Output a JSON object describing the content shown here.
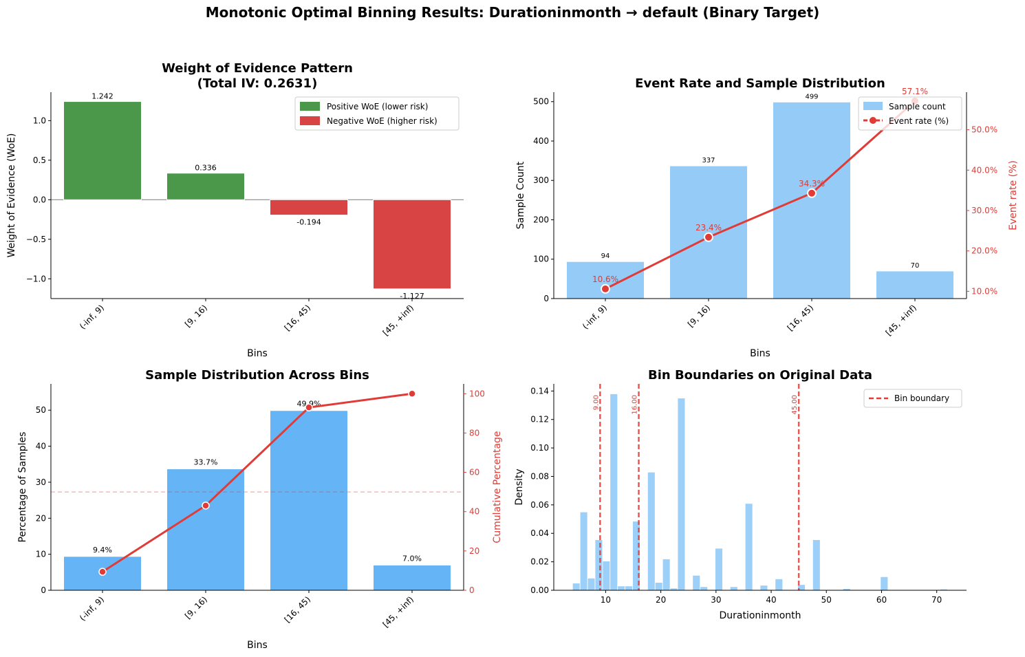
{
  "title": "Monotonic Optimal Binning Results: Durationinmonth → default (Binary Target)",
  "colors": {
    "positive": "#4b984b",
    "negative": "#d84444",
    "count_bar": "#94cbf7",
    "pct_bar": "#65b5f6",
    "hist_bar": "#9dd0f8",
    "red_line": "#e03b36",
    "axis_red": "#e03b36"
  },
  "chart_data": [
    {
      "id": "woe",
      "type": "bar",
      "title": "Weight of Evidence Pattern",
      "subtitle": "(Total IV: 0.2631)",
      "xlabel": "Bins",
      "ylabel": "Weight of Evidence (WoE)",
      "categories": [
        "(-inf, 9)",
        "[9, 16)",
        "[16, 45)",
        "[45, +inf)"
      ],
      "values": [
        1.242,
        0.336,
        -0.194,
        -1.127
      ],
      "value_labels": [
        "1.242",
        "0.336",
        "-0.194",
        "-1.127"
      ],
      "ylim": [
        -1.25,
        1.36
      ],
      "yticks": [
        -1.0,
        -0.5,
        0.0,
        0.5,
        1.0
      ],
      "ytick_labels": [
        "−1.0",
        "−0.5",
        "0.0",
        "0.5",
        "1.0"
      ],
      "legend": [
        "Positive WoE (lower risk)",
        "Negative WoE (higher risk)"
      ],
      "legend_loc": "top-right"
    },
    {
      "id": "event",
      "type": "bar+line",
      "title": "Event Rate and Sample Distribution",
      "xlabel": "Bins",
      "ylabel": "Sample Count",
      "ylabel_right": "Event rate (%)",
      "categories": [
        "(-inf, 9)",
        "[9, 16)",
        "[16, 45)",
        "[45, +inf)"
      ],
      "counts": [
        94,
        337,
        499,
        70
      ],
      "count_labels": [
        "94",
        "337",
        "499",
        "70"
      ],
      "event_rate": [
        10.6,
        23.4,
        34.3,
        57.1
      ],
      "rate_labels": [
        "10.6%",
        "23.4%",
        "34.3%",
        "57.1%"
      ],
      "ylim": [
        0,
        524
      ],
      "yticks": [
        0,
        100,
        200,
        300,
        400,
        500
      ],
      "ytick_labels": [
        "0",
        "100",
        "200",
        "300",
        "400",
        "500"
      ],
      "ylim_right": [
        8.2,
        59.3
      ],
      "yticks_right": [
        10,
        20,
        30,
        40,
        50
      ],
      "ytick_labels_right": [
        "10.0%",
        "20.0%",
        "30.0%",
        "40.0%",
        "50.0%"
      ],
      "legend": [
        "Sample count",
        "Event rate (%)"
      ],
      "legend_loc": "top-right"
    },
    {
      "id": "dist",
      "type": "bar+line",
      "title": "Sample Distribution Across Bins",
      "xlabel": "Bins",
      "ylabel": "Percentage of Samples",
      "ylabel_right": "Cumulative Percentage",
      "categories": [
        "(-inf, 9)",
        "[9, 16)",
        "[16, 45)",
        "[45, +inf)"
      ],
      "percent": [
        9.4,
        33.7,
        49.9,
        7.0
      ],
      "percent_labels": [
        "9.4%",
        "33.7%",
        "49.9%",
        "7.0%"
      ],
      "cumulative": [
        9.4,
        43.1,
        93.0,
        100.0
      ],
      "ylim": [
        0,
        57.3
      ],
      "yticks": [
        0,
        10,
        20,
        30,
        40,
        50
      ],
      "ytick_labels": [
        "0",
        "10",
        "20",
        "30",
        "40",
        "50"
      ],
      "ylim_right": [
        0,
        105
      ],
      "yticks_right": [
        0,
        20,
        40,
        60,
        80,
        100
      ],
      "ytick_labels_right": [
        "0",
        "20",
        "40",
        "60",
        "80",
        "100"
      ],
      "reference_line": 50
    },
    {
      "id": "hist",
      "type": "histogram",
      "title": "Bin Boundaries on Original Data",
      "xlabel": "Durationinmonth",
      "ylabel": "Density",
      "bin_width": 1.36,
      "bins": [
        [
          4.0,
          0.005
        ],
        [
          5.36,
          0.055
        ],
        [
          6.72,
          0.0085
        ],
        [
          8.08,
          0.0355
        ],
        [
          9.44,
          0.0205
        ],
        [
          10.8,
          0.138
        ],
        [
          12.16,
          0.003
        ],
        [
          13.52,
          0.003
        ],
        [
          14.88,
          0.0485
        ],
        [
          17.6,
          0.083
        ],
        [
          18.96,
          0.0055
        ],
        [
          20.32,
          0.022
        ],
        [
          21.68,
          0.0015
        ],
        [
          23.04,
          0.135
        ],
        [
          25.76,
          0.0105
        ],
        [
          27.12,
          0.0025
        ],
        [
          29.84,
          0.0295
        ],
        [
          32.56,
          0.0025
        ],
        [
          35.28,
          0.061
        ],
        [
          38.0,
          0.0035
        ],
        [
          40.72,
          0.008
        ],
        [
          44.8,
          0.004
        ],
        [
          47.52,
          0.0355
        ],
        [
          53.0,
          0.0012
        ],
        [
          59.8,
          0.0095
        ],
        [
          70.6,
          0.0008
        ]
      ],
      "boundaries": [
        9.0,
        16.0,
        45.0
      ],
      "boundary_labels": [
        "9.00",
        "16.00",
        "45.00"
      ],
      "xlim": [
        0.6,
        75.4
      ],
      "xticks": [
        10,
        20,
        30,
        40,
        50,
        60,
        70
      ],
      "xtick_labels": [
        "10",
        "20",
        "30",
        "40",
        "50",
        "60",
        "70"
      ],
      "ylim": [
        0,
        0.145
      ],
      "yticks": [
        0,
        0.02,
        0.04,
        0.06,
        0.08,
        0.1,
        0.12,
        0.14
      ],
      "ytick_labels": [
        "0.00",
        "0.02",
        "0.04",
        "0.06",
        "0.08",
        "0.10",
        "0.12",
        "0.14"
      ],
      "legend": [
        "Bin boundary"
      ],
      "legend_loc": "top-right"
    }
  ]
}
